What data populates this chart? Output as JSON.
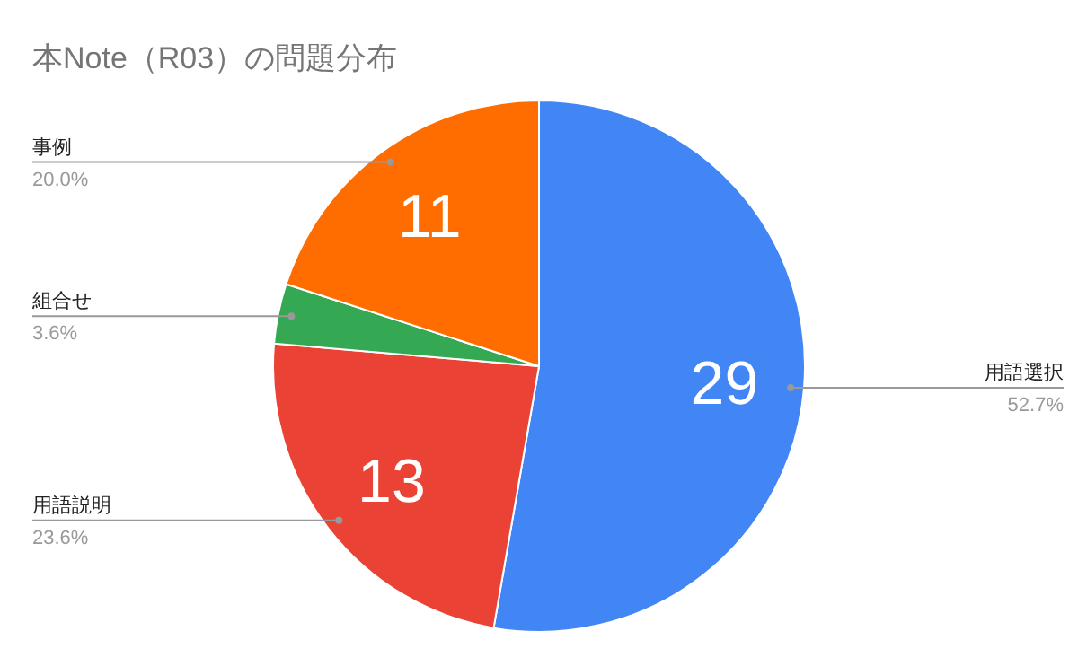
{
  "chart_data": {
    "type": "pie",
    "title": "本Note（R03）の問題分布",
    "categories": [
      "用語選択",
      "用語説明",
      "組合せ",
      "事例"
    ],
    "values": [
      29,
      13,
      2,
      11
    ],
    "colors": [
      "#4285f4",
      "#ea4335",
      "#34a853",
      "#ff6d01"
    ],
    "value_labels": [
      "29",
      "13",
      null,
      "11"
    ],
    "annotations": [
      "52.7%",
      "23.6%",
      "3.6%",
      "20.0%"
    ]
  }
}
